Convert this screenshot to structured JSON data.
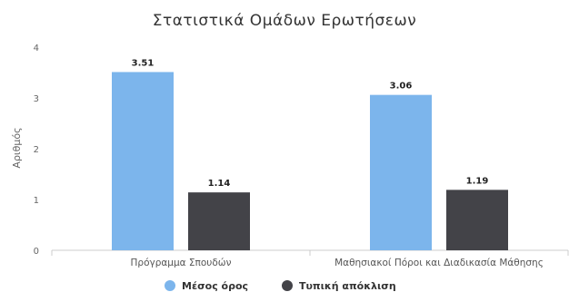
{
  "chart_data": {
    "type": "bar",
    "title": "Στατιστικά Ομάδων Ερωτήσεων",
    "ylabel": "Αριθμός",
    "xlabel": "",
    "categories": [
      "Πρόγραμμα Σπουδών",
      "Μαθησιακοί Πόροι και Διαδικασία Μάθησης"
    ],
    "series": [
      {
        "name": "Μέσος όρος",
        "values": [
          3.51,
          3.06
        ],
        "color": "#7cb5ec"
      },
      {
        "name": "Τυπική απόκλιση",
        "values": [
          1.14,
          1.19
        ],
        "color": "#434348"
      }
    ],
    "ylim": [
      0,
      4
    ],
    "yticks": [
      0,
      1,
      2,
      3,
      4
    ],
    "grid": false,
    "legend_position": "bottom-center"
  }
}
